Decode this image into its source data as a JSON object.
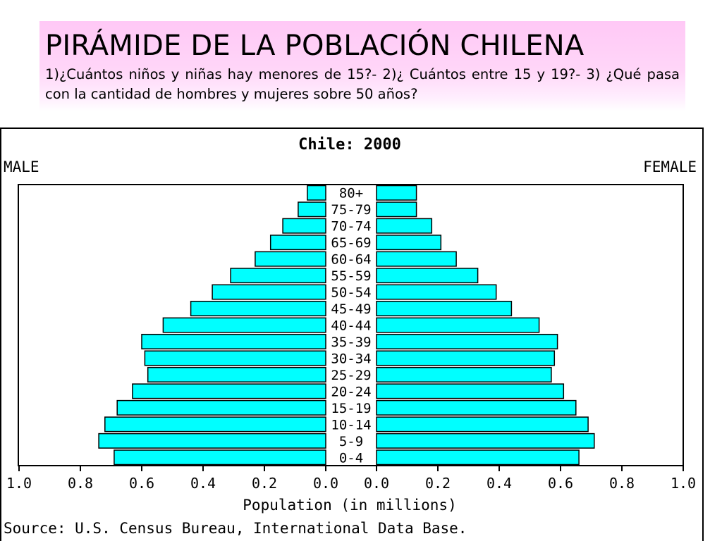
{
  "slide": {
    "title": "PIRÁMIDE DE LA POBLACIÓN CHILENA",
    "questions": "1)¿Cuántos niños y niñas hay menores de 15?- 2)¿ Cuántos entre 15 y 19?- 3) ¿Qué pasa con la cantidad de hombres y mujeres sobre 50 años?"
  },
  "chart_data": {
    "type": "bar",
    "orientation": "horizontal",
    "layout": "population-pyramid",
    "title": "Chile: 2000",
    "left_label": "MALE",
    "right_label": "FEMALE",
    "xlabel": "Population (in millions)",
    "source": "Source: U.S. Census Bureau, International Data Base.",
    "xlim": [
      0,
      1.0
    ],
    "x_ticks": [
      "1.0",
      "0.8",
      "0.6",
      "0.4",
      "0.2",
      "0.0"
    ],
    "x_ticks_right": [
      "0.0",
      "0.2",
      "0.4",
      "0.6",
      "0.8",
      "1.0"
    ],
    "categories": [
      "80+",
      "75-79",
      "70-74",
      "65-69",
      "60-64",
      "55-59",
      "50-54",
      "45-49",
      "40-44",
      "35-39",
      "30-34",
      "25-29",
      "20-24",
      "15-19",
      "10-14",
      "5-9",
      "0-4"
    ],
    "series": [
      {
        "name": "MALE",
        "values": [
          0.06,
          0.09,
          0.14,
          0.18,
          0.23,
          0.31,
          0.37,
          0.44,
          0.53,
          0.6,
          0.59,
          0.58,
          0.63,
          0.68,
          0.72,
          0.74,
          0.69
        ]
      },
      {
        "name": "FEMALE",
        "values": [
          0.13,
          0.13,
          0.18,
          0.21,
          0.26,
          0.33,
          0.39,
          0.44,
          0.53,
          0.59,
          0.58,
          0.57,
          0.61,
          0.65,
          0.69,
          0.71,
          0.66
        ]
      }
    ],
    "bar_color": "#00ffff",
    "grid": false
  }
}
